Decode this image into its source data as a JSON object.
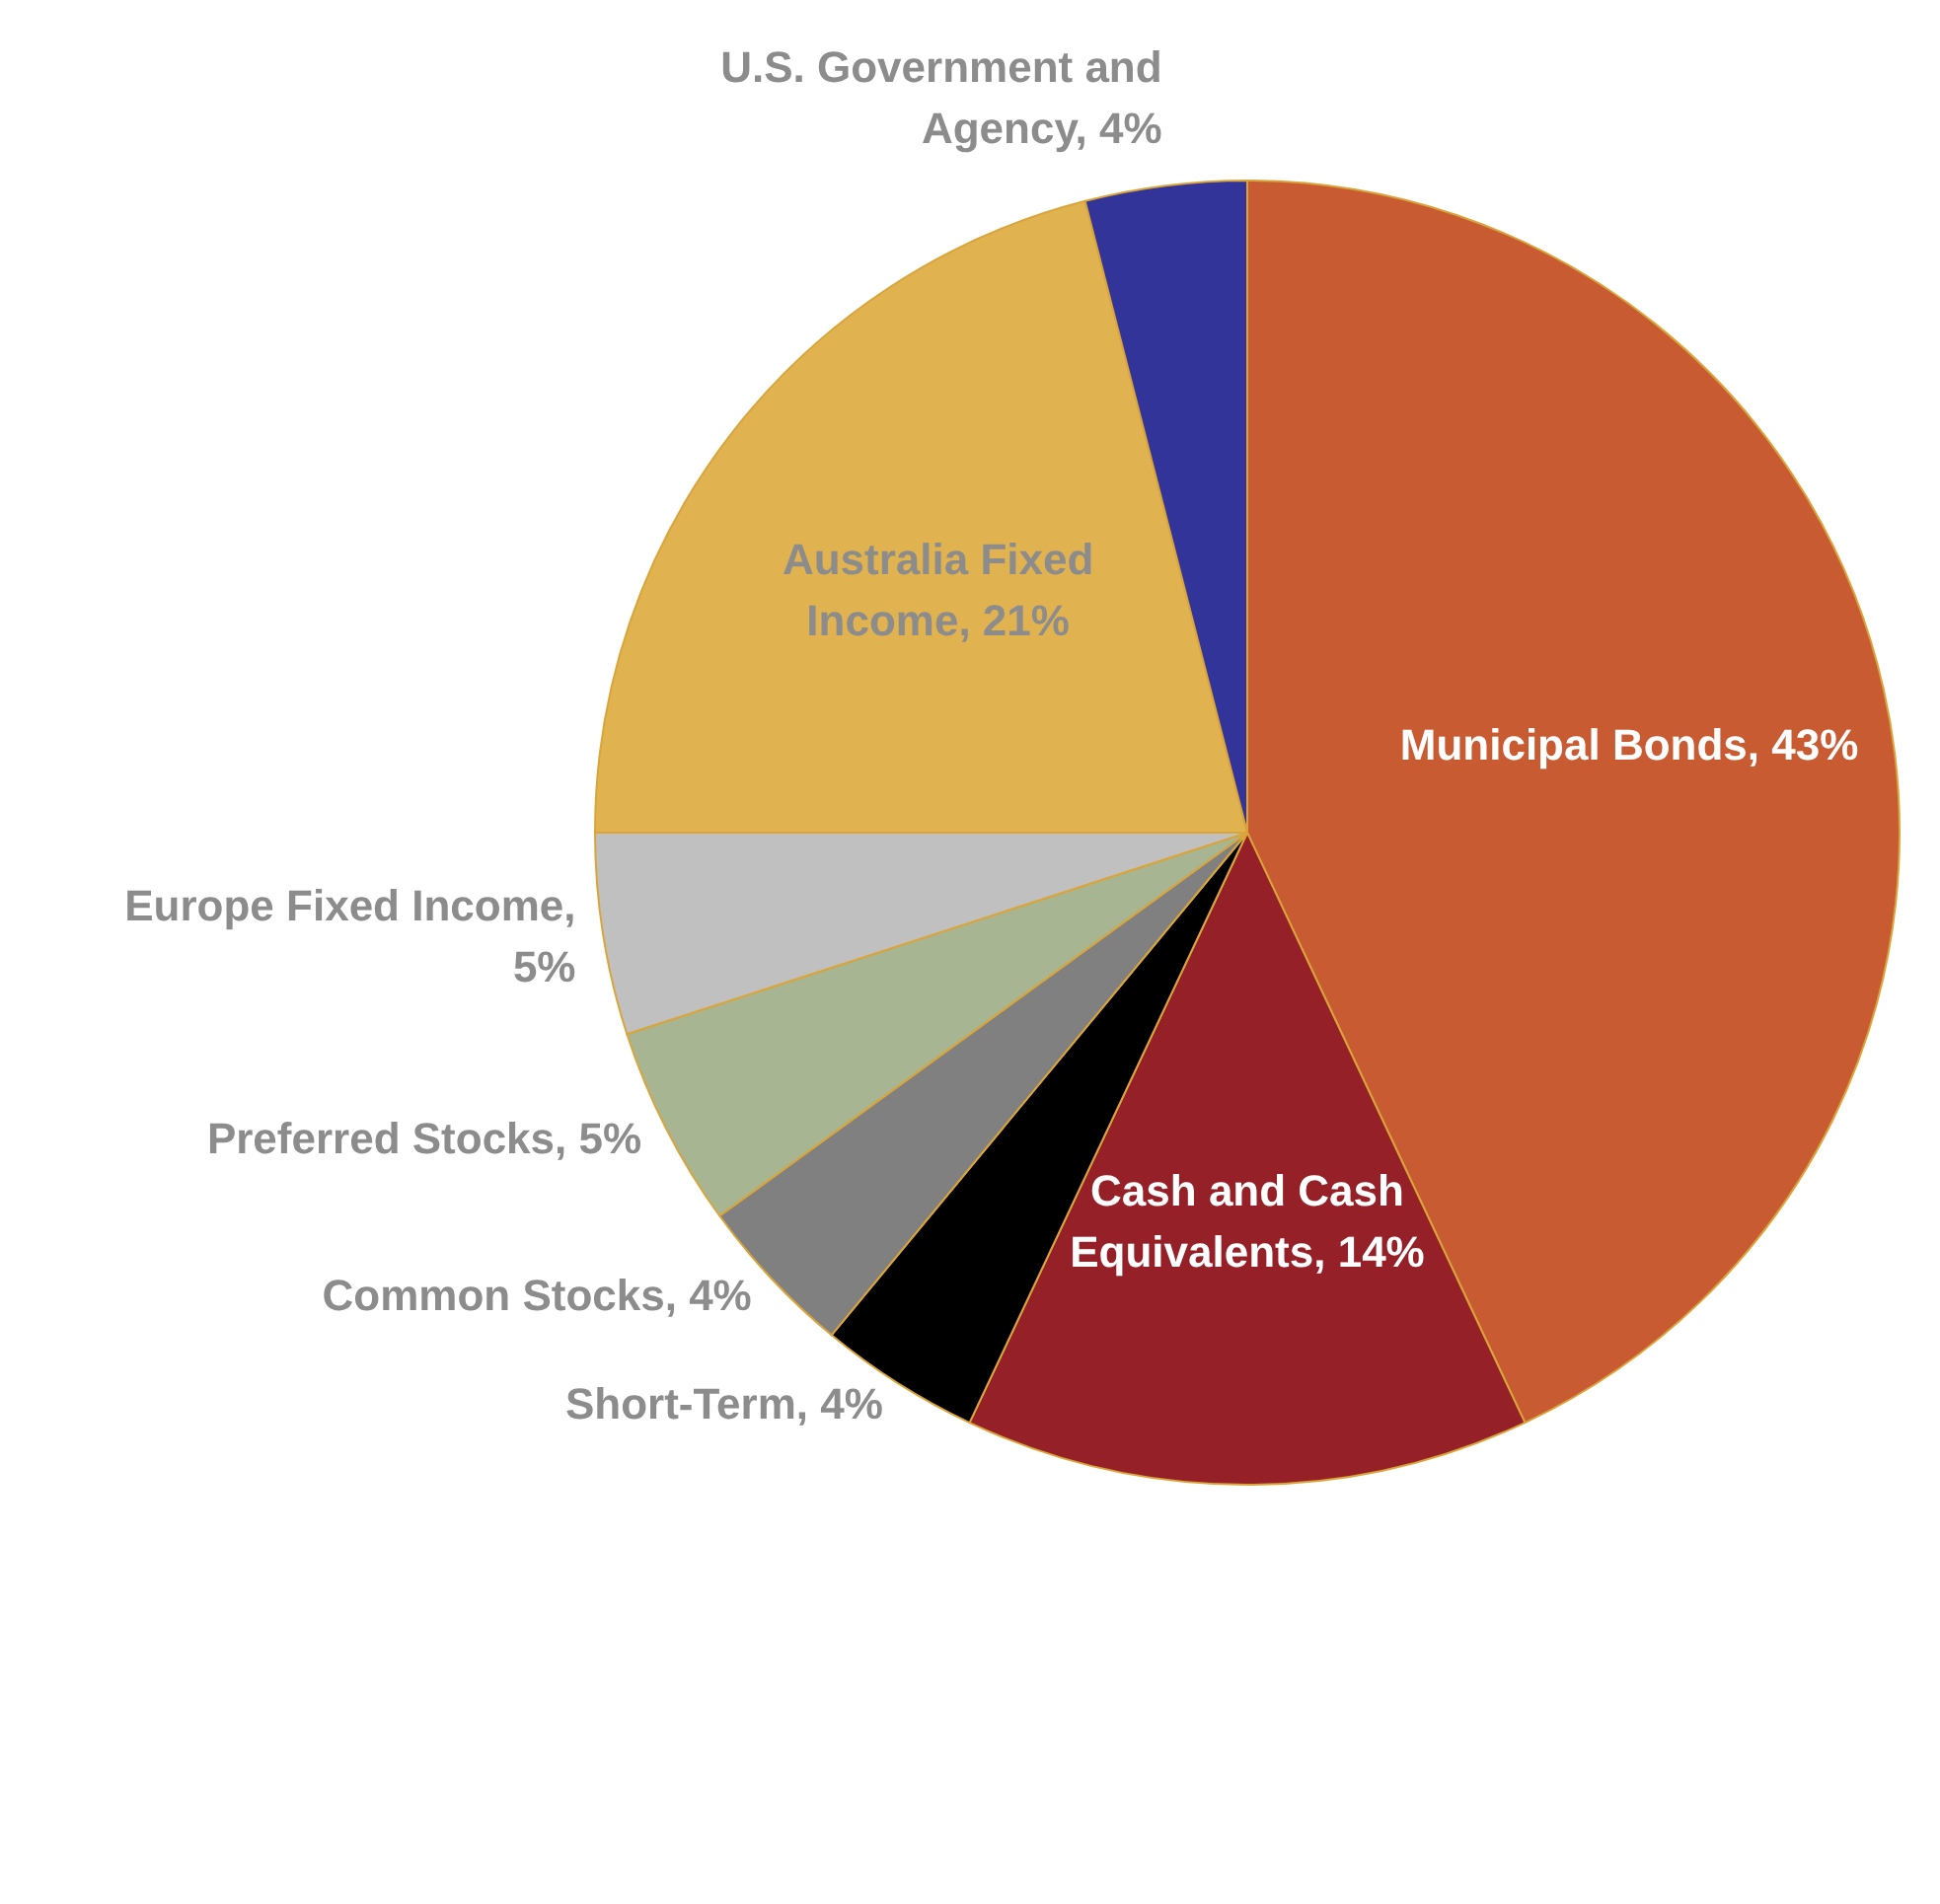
{
  "chart_data": {
    "type": "pie",
    "categories": [
      "Municipal Bonds, 43%",
      "Cash and Cash Equivalents, 14%",
      "Short-Term, 4%",
      "Common Stocks, 4%",
      "Preferred Stocks, 5%",
      "Europe Fixed Income, 5%",
      "Australia Fixed Income, 21%",
      "U.S. Government and Agency, 4%"
    ],
    "values": [
      43,
      14,
      4,
      4,
      5,
      5,
      21,
      4
    ],
    "colors": [
      "#c95b32",
      "#962027",
      "#000000",
      "#808080",
      "#a7b592",
      "#c0c0c0",
      "#e1b250",
      "#33349a"
    ],
    "legend": false
  }
}
